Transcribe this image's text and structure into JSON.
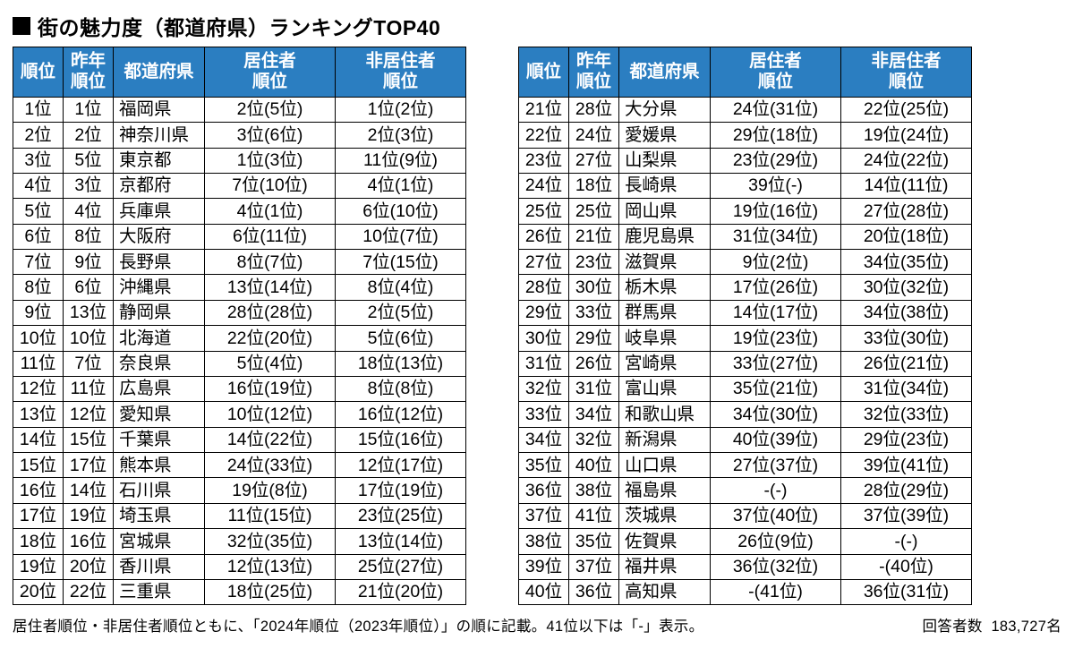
{
  "title": "街の魅力度（都道府県）ランキングTOP40",
  "colors": {
    "header_bg": "#2b7ec1",
    "header_fg": "#ffffff",
    "border": "#000000",
    "bg": "#ffffff"
  },
  "columns": [
    {
      "key": "rank",
      "label": "順位"
    },
    {
      "key": "prev",
      "label": "昨年\n順位"
    },
    {
      "key": "pref",
      "label": "都道府県"
    },
    {
      "key": "res",
      "label": "居住者\n順位"
    },
    {
      "key": "nres",
      "label": "非居住者\n順位"
    }
  ],
  "left_rows": [
    {
      "rank": "1位",
      "prev": "1位",
      "pref": "福岡県",
      "res": "2位(5位)",
      "nres": "1位(2位)"
    },
    {
      "rank": "2位",
      "prev": "2位",
      "pref": "神奈川県",
      "res": "3位(6位)",
      "nres": "2位(3位)"
    },
    {
      "rank": "3位",
      "prev": "5位",
      "pref": "東京都",
      "res": "1位(3位)",
      "nres": "11位(9位)"
    },
    {
      "rank": "4位",
      "prev": "3位",
      "pref": "京都府",
      "res": "7位(10位)",
      "nres": "4位(1位)"
    },
    {
      "rank": "5位",
      "prev": "4位",
      "pref": "兵庫県",
      "res": "4位(1位)",
      "nres": "6位(10位)"
    },
    {
      "rank": "6位",
      "prev": "8位",
      "pref": "大阪府",
      "res": "6位(11位)",
      "nres": "10位(7位)"
    },
    {
      "rank": "7位",
      "prev": "9位",
      "pref": "長野県",
      "res": "8位(7位)",
      "nres": "7位(15位)"
    },
    {
      "rank": "8位",
      "prev": "6位",
      "pref": "沖縄県",
      "res": "13位(14位)",
      "nres": "8位(4位)"
    },
    {
      "rank": "9位",
      "prev": "13位",
      "pref": "静岡県",
      "res": "28位(28位)",
      "nres": "2位(5位)"
    },
    {
      "rank": "10位",
      "prev": "10位",
      "pref": "北海道",
      "res": "22位(20位)",
      "nres": "5位(6位)"
    },
    {
      "rank": "11位",
      "prev": "7位",
      "pref": "奈良県",
      "res": "5位(4位)",
      "nres": "18位(13位)"
    },
    {
      "rank": "12位",
      "prev": "11位",
      "pref": "広島県",
      "res": "16位(19位)",
      "nres": "8位(8位)"
    },
    {
      "rank": "13位",
      "prev": "12位",
      "pref": "愛知県",
      "res": "10位(12位)",
      "nres": "16位(12位)"
    },
    {
      "rank": "14位",
      "prev": "15位",
      "pref": "千葉県",
      "res": "14位(22位)",
      "nres": "15位(16位)"
    },
    {
      "rank": "15位",
      "prev": "17位",
      "pref": "熊本県",
      "res": "24位(33位)",
      "nres": "12位(17位)"
    },
    {
      "rank": "16位",
      "prev": "14位",
      "pref": "石川県",
      "res": "19位(8位)",
      "nres": "17位(19位)"
    },
    {
      "rank": "17位",
      "prev": "19位",
      "pref": "埼玉県",
      "res": "11位(15位)",
      "nres": "23位(25位)"
    },
    {
      "rank": "18位",
      "prev": "16位",
      "pref": "宮城県",
      "res": "32位(35位)",
      "nres": "13位(14位)"
    },
    {
      "rank": "19位",
      "prev": "20位",
      "pref": "香川県",
      "res": "12位(13位)",
      "nres": "25位(27位)"
    },
    {
      "rank": "20位",
      "prev": "22位",
      "pref": "三重県",
      "res": "18位(25位)",
      "nres": "21位(20位)"
    }
  ],
  "right_rows": [
    {
      "rank": "21位",
      "prev": "28位",
      "pref": "大分県",
      "res": "24位(31位)",
      "nres": "22位(25位)"
    },
    {
      "rank": "22位",
      "prev": "24位",
      "pref": "愛媛県",
      "res": "29位(18位)",
      "nres": "19位(24位)"
    },
    {
      "rank": "23位",
      "prev": "27位",
      "pref": "山梨県",
      "res": "23位(29位)",
      "nres": "24位(22位)"
    },
    {
      "rank": "24位",
      "prev": "18位",
      "pref": "長崎県",
      "res": "39位(-)",
      "nres": "14位(11位)"
    },
    {
      "rank": "25位",
      "prev": "25位",
      "pref": "岡山県",
      "res": "19位(16位)",
      "nres": "27位(28位)"
    },
    {
      "rank": "26位",
      "prev": "21位",
      "pref": "鹿児島県",
      "res": "31位(34位)",
      "nres": "20位(18位)"
    },
    {
      "rank": "27位",
      "prev": "23位",
      "pref": "滋賀県",
      "res": "9位(2位)",
      "nres": "34位(35位)"
    },
    {
      "rank": "28位",
      "prev": "30位",
      "pref": "栃木県",
      "res": "17位(26位)",
      "nres": "30位(32位)"
    },
    {
      "rank": "29位",
      "prev": "33位",
      "pref": "群馬県",
      "res": "14位(17位)",
      "nres": "34位(38位)"
    },
    {
      "rank": "30位",
      "prev": "29位",
      "pref": "岐阜県",
      "res": "19位(23位)",
      "nres": "33位(30位)"
    },
    {
      "rank": "31位",
      "prev": "26位",
      "pref": "宮崎県",
      "res": "33位(27位)",
      "nres": "26位(21位)"
    },
    {
      "rank": "32位",
      "prev": "31位",
      "pref": "富山県",
      "res": "35位(21位)",
      "nres": "31位(34位)"
    },
    {
      "rank": "33位",
      "prev": "34位",
      "pref": "和歌山県",
      "res": "34位(30位)",
      "nres": "32位(33位)"
    },
    {
      "rank": "34位",
      "prev": "32位",
      "pref": "新潟県",
      "res": "40位(39位)",
      "nres": "29位(23位)"
    },
    {
      "rank": "35位",
      "prev": "40位",
      "pref": "山口県",
      "res": "27位(37位)",
      "nres": "39位(41位)"
    },
    {
      "rank": "36位",
      "prev": "38位",
      "pref": "福島県",
      "res": "-(-)",
      "nres": "28位(29位)"
    },
    {
      "rank": "37位",
      "prev": "41位",
      "pref": "茨城県",
      "res": "37位(40位)",
      "nres": "37位(39位)"
    },
    {
      "rank": "38位",
      "prev": "35位",
      "pref": "佐賀県",
      "res": "26位(9位)",
      "nres": "-(-)"
    },
    {
      "rank": "39位",
      "prev": "37位",
      "pref": "福井県",
      "res": "36位(32位)",
      "nres": "-(40位)"
    },
    {
      "rank": "40位",
      "prev": "36位",
      "pref": "高知県",
      "res": "-(41位)",
      "nres": "36位(31位)"
    }
  ],
  "footnote": "居住者順位・非居住者順位ともに、「2024年順位（2023年順位）」の順に記載。41位以下は「-」表示。",
  "respondents_label": "回答者数",
  "respondents_value": "183,727名"
}
